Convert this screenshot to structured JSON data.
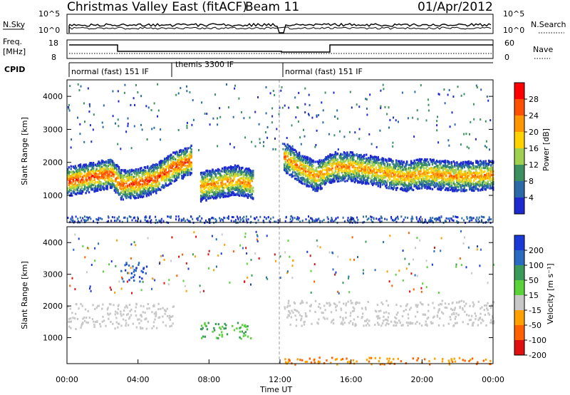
{
  "header": {
    "station": "Christmas Valley East (fitACF)",
    "beam": "Beam 11",
    "date": "01/Apr/2012"
  },
  "panels": {
    "nsky_label": "N.Sky",
    "nsky_ticks": [
      "10^5",
      "10^0"
    ],
    "nsearch_label": "N.Search",
    "nsearch_ticks": [
      "10^5",
      "10^0"
    ],
    "freq_label_1": "Freq.",
    "freq_label_2": "[MHz]",
    "freq_ticks": [
      "18",
      "8"
    ],
    "nave_label": "Nave",
    "nave_ticks": [
      "60",
      "0"
    ],
    "cpid_label": "CPID",
    "cpid_modes": [
      {
        "label": "normal (fast) 151 IF",
        "start": "00:00",
        "end": "06:00"
      },
      {
        "label": "themis 3300 IF",
        "start": "06:00",
        "end": "12:00"
      },
      {
        "label": "normal (fast) 151 IF",
        "start": "12:00",
        "end": "24:00"
      }
    ]
  },
  "axes": {
    "ylabel": "Slant Range [km]",
    "xlabel": "Time UT",
    "y_ticks": [
      "4000",
      "3000",
      "2000",
      "1000"
    ],
    "x_ticks": [
      "00:00",
      "04:00",
      "08:00",
      "12:00",
      "16:00",
      "20:00",
      "00:00"
    ]
  },
  "colorbars": {
    "power": {
      "label": "Power [dB]",
      "ticks": [
        "28",
        "24",
        "20",
        "16",
        "12",
        "8",
        "4"
      ],
      "colors": [
        "#ff0000",
        "#ff5000",
        "#ff9600",
        "#ffd200",
        "#a0d050",
        "#3c9060",
        "#2a6aa8",
        "#1e2ad0"
      ]
    },
    "velocity": {
      "label": "Velocity [m s⁻¹]",
      "ticks": [
        "200",
        "100",
        "50",
        "15",
        "-15",
        "-50",
        "-100",
        "-200"
      ],
      "colors": [
        "#1a3ad8",
        "#2a6ac0",
        "#3a9a5a",
        "#5ad23a",
        "#c8c8c8",
        "#ffa000",
        "#ff6000",
        "#e01010"
      ]
    }
  },
  "chart_data": [
    {
      "type": "heatmap",
      "title": "Power",
      "xlabel": "Time UT",
      "ylabel": "Slant Range [km]",
      "x_range": [
        "00:00",
        "24:00"
      ],
      "ylim": [
        180,
        4500
      ],
      "color_range": [
        0,
        30
      ],
      "bands": [
        {
          "t": [
            0,
            0.5,
            1.5,
            2.5,
            3.0,
            4.0,
            5.0,
            6.0,
            7.0
          ],
          "range_km": [
            1450,
            1500,
            1600,
            1700,
            1350,
            1400,
            1550,
            1900,
            2100
          ],
          "peak_db": 26
        },
        {
          "t": [
            7.5,
            8.5,
            9.5,
            10.5
          ],
          "range_km": [
            1300,
            1400,
            1500,
            1350
          ],
          "peak_db": 22
        },
        {
          "t": [
            12.2,
            13.0,
            14.0,
            15.0,
            16.0,
            17.5,
            19.0,
            20.0,
            22.0,
            24.0
          ],
          "range_km": [
            2200,
            1900,
            1600,
            1900,
            1900,
            1750,
            1600,
            1700,
            1600,
            1650
          ],
          "peak_db": 22
        }
      ],
      "ground_scatter_range_km": [
        180,
        400
      ]
    },
    {
      "type": "heatmap",
      "title": "Velocity",
      "xlabel": "Time UT",
      "ylabel": "Slant Range [km]",
      "x_range": [
        "00:00",
        "24:00"
      ],
      "ylim": [
        180,
        4500
      ],
      "color_range": [
        -200,
        200
      ],
      "regions": [
        {
          "t": [
            0.0,
            6.0
          ],
          "range_km": [
            1300,
            2100
          ],
          "velocity": "-15 to 15"
        },
        {
          "t": [
            3.0,
            4.5
          ],
          "range_km": [
            2800,
            3400
          ],
          "velocity": "200"
        },
        {
          "t": [
            7.5,
            10.5
          ],
          "range_km": [
            1000,
            1500
          ],
          "velocity": "15 to 50"
        },
        {
          "t": [
            12.2,
            24.0
          ],
          "range_km": [
            1400,
            2200
          ],
          "velocity": "-15 to 15"
        },
        {
          "t": [
            12.2,
            24.0
          ],
          "range_km": [
            180,
            400
          ],
          "velocity": "-50"
        }
      ]
    }
  ]
}
